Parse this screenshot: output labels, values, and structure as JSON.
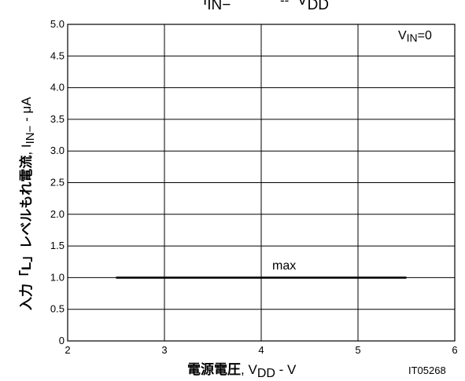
{
  "chart_data": {
    "type": "line",
    "title": {
      "left": {
        "main": "I",
        "sub": "IN−"
      },
      "separator": "--",
      "right": {
        "main": "V",
        "sub": "DD"
      }
    },
    "xlabel": {
      "jp": "電源電圧",
      "sep": ",",
      "main": "V",
      "sub": "DD",
      "unit": "- V"
    },
    "ylabel": {
      "jp": "入力「L」レベルもれ電流",
      "sep": ",",
      "main": "I",
      "sub": "IN−",
      "unit": "- μA"
    },
    "xlim": [
      2,
      6
    ],
    "ylim": [
      0,
      5.0
    ],
    "x_ticks": [
      2,
      3,
      4,
      5,
      6
    ],
    "x_tick_labels": [
      "2",
      "3",
      "4",
      "5",
      "6"
    ],
    "y_ticks": [
      0,
      0.5,
      1.0,
      1.5,
      2.0,
      2.5,
      3.0,
      3.5,
      4.0,
      4.5,
      5.0
    ],
    "y_tick_labels": [
      "0",
      "0.5",
      "1.0",
      "1.5",
      "2.0",
      "2.5",
      "3.0",
      "3.5",
      "4.0",
      "4.5",
      "5.0"
    ],
    "grid": true,
    "condition": {
      "main": "V",
      "sub": "IN",
      "value": "=0"
    },
    "series": [
      {
        "name": "max",
        "x": [
          2.5,
          5.5
        ],
        "y": [
          1.0,
          1.0
        ]
      }
    ],
    "figure_id": "IT05268"
  }
}
